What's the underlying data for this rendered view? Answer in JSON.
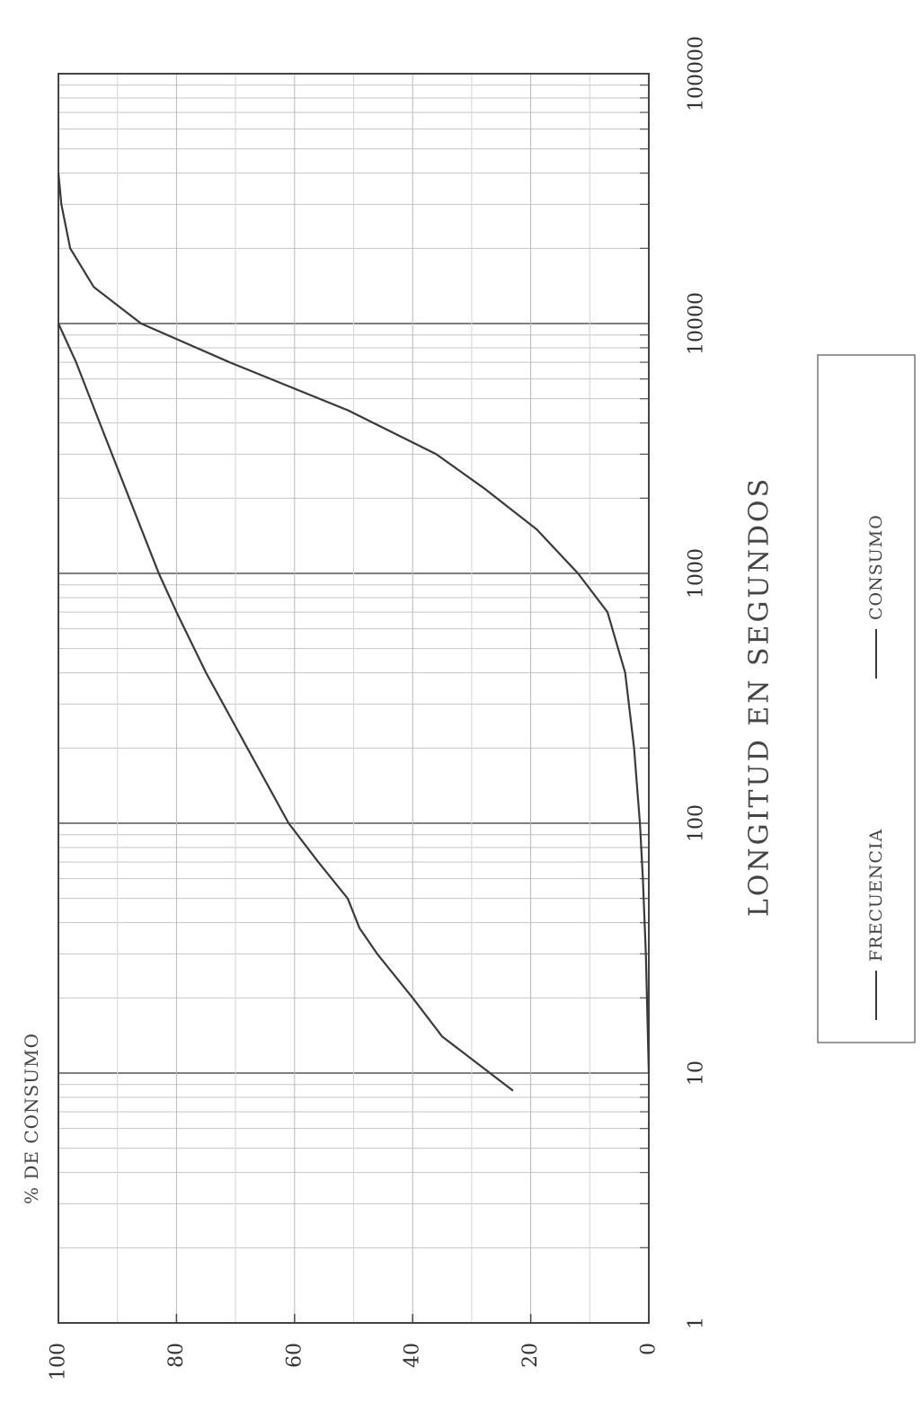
{
  "chart_data": {
    "type": "line",
    "title": "% DE CONSUMO",
    "xlabel": "LONGITUD EN SEGUNDOS",
    "ylabel": "",
    "x_scale": "log",
    "xlim": [
      1,
      100000
    ],
    "ylim": [
      0,
      100
    ],
    "x_ticks": [
      {
        "value": 1,
        "label": "1"
      },
      {
        "value": 10,
        "label": "10"
      },
      {
        "value": 100,
        "label": "100"
      },
      {
        "value": 1000,
        "label": "1000"
      },
      {
        "value": 10000,
        "label": "10000"
      },
      {
        "value": 100000,
        "label": "100000"
      }
    ],
    "y_ticks": [
      {
        "value": 0,
        "label": "0"
      },
      {
        "value": 20,
        "label": "20"
      },
      {
        "value": 40,
        "label": "40"
      },
      {
        "value": 60,
        "label": "60"
      },
      {
        "value": 80,
        "label": "80"
      },
      {
        "value": 100,
        "label": "100"
      }
    ],
    "grid": true,
    "orientation": "rotated 90° counter-clockwise",
    "legend": {
      "placement": "bottom-right",
      "entries": [
        "FRECUENCIA",
        "CONSUMO"
      ]
    },
    "series": [
      {
        "name": "FRECUENCIA",
        "color": "#3a3a3a",
        "points": [
          [
            8.5,
            23
          ],
          [
            14,
            35
          ],
          [
            20,
            40
          ],
          [
            30,
            46
          ],
          [
            38,
            49
          ],
          [
            50,
            51
          ],
          [
            70,
            56
          ],
          [
            100,
            61
          ],
          [
            200,
            68
          ],
          [
            400,
            75
          ],
          [
            700,
            80
          ],
          [
            1000,
            83
          ],
          [
            2000,
            88
          ],
          [
            4000,
            93
          ],
          [
            7000,
            97
          ],
          [
            10000,
            100
          ]
        ]
      },
      {
        "name": "CONSUMO",
        "color": "#3a3a3a",
        "points": [
          [
            10,
            0
          ],
          [
            30,
            0.5
          ],
          [
            60,
            1
          ],
          [
            100,
            1.5
          ],
          [
            200,
            2.5
          ],
          [
            400,
            4
          ],
          [
            700,
            7
          ],
          [
            1000,
            12
          ],
          [
            1500,
            19
          ],
          [
            2200,
            28
          ],
          [
            3000,
            36
          ],
          [
            4500,
            51
          ],
          [
            7000,
            71
          ],
          [
            10000,
            86
          ],
          [
            14000,
            94
          ],
          [
            20000,
            98
          ],
          [
            30000,
            99.5
          ],
          [
            40000,
            100
          ]
        ]
      }
    ]
  }
}
